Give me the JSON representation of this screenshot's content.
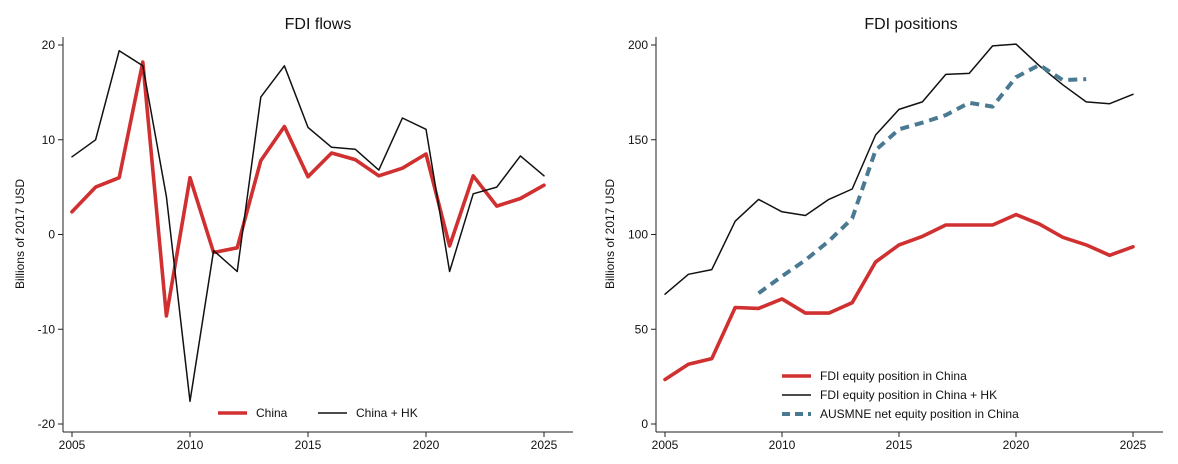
{
  "chart_data": [
    {
      "type": "line",
      "title": "FDI flows",
      "xlabel": "",
      "ylabel": "Billions of 2017 USD",
      "xlim": [
        2005,
        2025
      ],
      "ylim": [
        -20,
        20
      ],
      "xticks": [
        2005,
        2010,
        2015,
        2020,
        2025
      ],
      "yticks": [
        -20,
        -10,
        0,
        10,
        20
      ],
      "grid": false,
      "legend_position": "bottom",
      "series": [
        {
          "name": "China",
          "color": "#d03030",
          "style": "solid-thick",
          "x": [
            2005,
            2006,
            2007,
            2008,
            2009,
            2010,
            2011,
            2012,
            2013,
            2014,
            2015,
            2016,
            2017,
            2018,
            2019,
            2020,
            2021,
            2022,
            2023,
            2024,
            2025
          ],
          "values": [
            2.4,
            5.0,
            6.0,
            18.2,
            -8.6,
            6.0,
            -1.9,
            -1.4,
            7.8,
            11.4,
            6.1,
            8.6,
            7.9,
            6.2,
            7.0,
            8.5,
            -1.2,
            6.2,
            3.0,
            3.8,
            5.2
          ]
        },
        {
          "name": "China + HK",
          "color": "#111111",
          "style": "solid-thin",
          "x": [
            2005,
            2006,
            2007,
            2008,
            2009,
            2010,
            2011,
            2012,
            2013,
            2014,
            2015,
            2016,
            2017,
            2018,
            2019,
            2020,
            2021,
            2022,
            2023,
            2024,
            2025
          ],
          "values": [
            8.2,
            10.0,
            19.4,
            17.8,
            4.0,
            -17.6,
            -1.7,
            -3.9,
            14.5,
            17.8,
            11.3,
            9.2,
            9.0,
            6.8,
            12.3,
            11.1,
            -3.9,
            4.3,
            5.0,
            8.3,
            6.2
          ]
        }
      ]
    },
    {
      "type": "line",
      "title": "FDI positions",
      "xlabel": "",
      "ylabel": "Billions of 2017 USD",
      "xlim": [
        2005,
        2025
      ],
      "ylim": [
        0,
        200
      ],
      "xticks": [
        2005,
        2010,
        2015,
        2020,
        2025
      ],
      "yticks": [
        0,
        50,
        100,
        150,
        200
      ],
      "grid": false,
      "legend_position": "bottom-right",
      "series": [
        {
          "name": "FDI equity position in China",
          "color": "#d03030",
          "style": "solid-thick",
          "x": [
            2005,
            2006,
            2007,
            2008,
            2009,
            2010,
            2011,
            2012,
            2013,
            2014,
            2015,
            2016,
            2017,
            2018,
            2019,
            2020,
            2021,
            2022,
            2023,
            2024,
            2025
          ],
          "values": [
            23.5,
            31.5,
            34.5,
            61.5,
            61.0,
            66.0,
            58.5,
            58.5,
            64.0,
            85.5,
            94.5,
            99.0,
            105.0,
            105.0,
            105.0,
            110.5,
            105.5,
            98.5,
            94.5,
            89.0,
            93.5
          ]
        },
        {
          "name": "FDI equity position in China + HK",
          "color": "#111111",
          "style": "solid-thin",
          "x": [
            2005,
            2006,
            2007,
            2008,
            2009,
            2010,
            2011,
            2012,
            2013,
            2014,
            2015,
            2016,
            2017,
            2018,
            2019,
            2020,
            2021,
            2022,
            2023,
            2024,
            2025
          ],
          "values": [
            68.5,
            79.0,
            81.5,
            107.0,
            118.5,
            112.0,
            110.0,
            118.5,
            124.0,
            152.5,
            166.0,
            170.0,
            184.5,
            185.0,
            199.5,
            200.5,
            189.0,
            179.0,
            170.0,
            169.0,
            174.0
          ]
        },
        {
          "name": "AUSMNE net equity position in China",
          "color": "#4a7a92",
          "style": "dashed-thick",
          "x": [
            2009,
            2010,
            2011,
            2012,
            2013,
            2014,
            2015,
            2016,
            2017,
            2018,
            2019,
            2020,
            2021,
            2022,
            2023
          ],
          "values": [
            69.0,
            78.0,
            86.5,
            96.5,
            108.5,
            144.5,
            155.5,
            159.0,
            163.0,
            169.5,
            167.5,
            183.0,
            189.5,
            181.5,
            182.0
          ]
        }
      ]
    }
  ]
}
